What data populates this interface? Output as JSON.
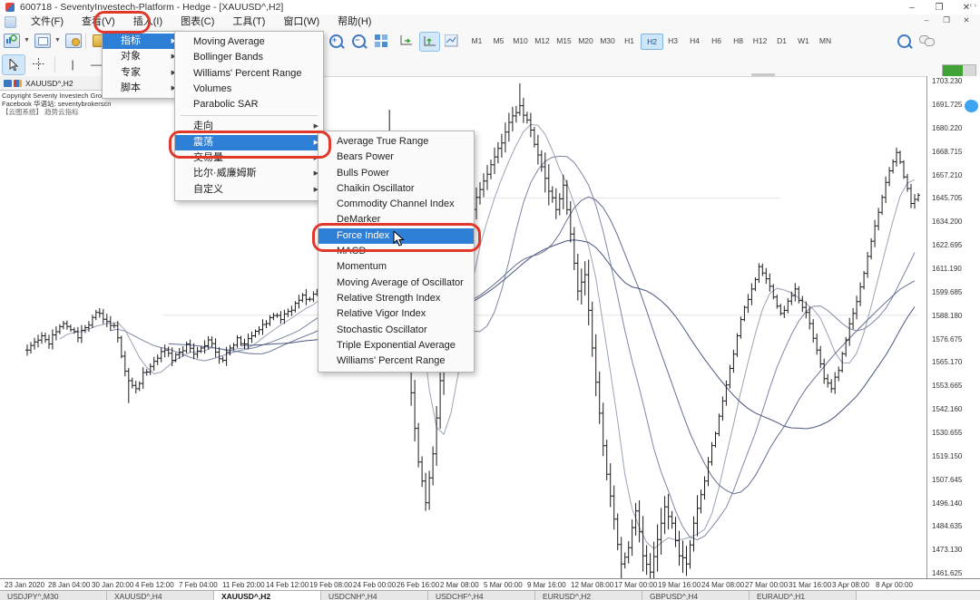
{
  "window": {
    "title": "600718 - SeventyInvestech-Platform - Hedge - [XAUUSD^,H2]",
    "controls": {
      "minimize": "–",
      "restore": "❐",
      "close": "✕"
    },
    "child_controls": {
      "minimize": "–",
      "restore": "❐",
      "close": "✕"
    }
  },
  "menu_bar": {
    "items": [
      {
        "label": "文件(F)"
      },
      {
        "label": "查看(V)"
      },
      {
        "label": "插入(I)",
        "annotated": true
      },
      {
        "label": "图表(C)"
      },
      {
        "label": "工具(T)"
      },
      {
        "label": "窗口(W)"
      },
      {
        "label": "帮助(H)"
      }
    ]
  },
  "toolbar": {
    "left_icons": [
      "new-chart",
      "profiles",
      "market-watch",
      "new-order"
    ],
    "right_icons": [
      "zoom-in",
      "zoom-out",
      "tile-windows",
      "auto-scroll",
      "chart-shift",
      "indicator-list"
    ],
    "active_right_icon": "chart-shift",
    "far_right_icons": [
      "search",
      "chat",
      "progress-bar"
    ],
    "timeframes": [
      "M1",
      "M5",
      "M10",
      "M12",
      "M15",
      "M20",
      "M30",
      "H1",
      "H2",
      "H3",
      "H4",
      "H6",
      "H8",
      "H12",
      "D1",
      "W1",
      "MN"
    ],
    "active_timeframe": "H2",
    "drawing_icons": [
      "cursor",
      "crosshair",
      "vertical-line",
      "horizontal-line"
    ],
    "active_drawing_icon": "cursor"
  },
  "insert_menu": {
    "items": [
      {
        "label": "指标",
        "has_submenu": true,
        "highlighted": true
      },
      {
        "label": "对象",
        "has_submenu": true
      },
      {
        "label": "专家",
        "has_submenu": true
      },
      {
        "label": "脚本",
        "has_submenu": true
      }
    ]
  },
  "indicators_submenu": {
    "items": [
      {
        "label": "Moving Average"
      },
      {
        "label": "Bollinger Bands"
      },
      {
        "label": "Williams' Percent Range"
      },
      {
        "label": "Volumes"
      },
      {
        "label": "Parabolic SAR"
      },
      {
        "separator": true
      },
      {
        "label": "走向",
        "has_submenu": true
      },
      {
        "label": "震荡",
        "has_submenu": true,
        "highlighted": true,
        "annotated": true
      },
      {
        "label": "交易量",
        "has_submenu": true
      },
      {
        "label": "比尔·威廉姆斯",
        "has_submenu": true
      },
      {
        "label": "自定义",
        "has_submenu": true
      }
    ]
  },
  "oscillators_submenu": {
    "highlighted": "Force Index",
    "items": [
      "Average True Range",
      "Bears Power",
      "Bulls Power",
      "Chaikin Oscillator",
      "Commodity Channel Index",
      "DeMarker",
      "Force Index",
      "MACD",
      "Momentum",
      "Moving Average of Oscillator",
      "Relative Strength Index",
      "Relative Vigor Index",
      "Stochastic Oscillator",
      "Triple Exponential Average",
      "Williams' Percent Range"
    ]
  },
  "chart": {
    "symbol_tab": "XAUUSD^,H2",
    "watermark_lines": [
      "Copyright Seventy Investech Gro",
      "Facebook 华语站: seventybrokerscn",
      "【云图系统】 趋势云指标"
    ],
    "price_axis_labels": [
      "1703.230",
      "1691.725",
      "1680.220",
      "1668.715",
      "1657.210",
      "1645.705",
      "1634.200",
      "1622.695",
      "1611.190",
      "1599.685",
      "1588.180",
      "1576.675",
      "1565.170",
      "1553.665",
      "1542.160",
      "1530.655",
      "1519.150",
      "1507.645",
      "1496.140",
      "1484.635",
      "1473.130",
      "1461.625"
    ],
    "time_axis_labels": [
      "23 Jan 2020",
      "28 Jan 04:00",
      "30 Jan 20:00",
      "4 Feb 12:00",
      "7 Feb 04:00",
      "11 Feb 20:00",
      "14 Feb 12:00",
      "19 Feb 08:00",
      "24 Feb 00:00",
      "26 Feb 16:00",
      "2 Mar 08:00",
      "5 Mar 00:00",
      "9 Mar 16:00",
      "12 Mar 08:00",
      "17 Mar 00:00",
      "19 Mar 16:00",
      "24 Mar 08:00",
      "27 Mar 00:00",
      "31 Mar 16:00",
      "3 Apr 08:00",
      "8 Apr 00:00"
    ]
  },
  "chart_data": {
    "type": "candlestick",
    "symbol": "XAUUSD^",
    "period": "H2",
    "ylim": [
      1455,
      1704
    ],
    "y_tick_step": 11.505,
    "closes": [
      1571,
      1575,
      1578,
      1574,
      1580,
      1584,
      1581,
      1577,
      1582,
      1587,
      1589,
      1585,
      1583,
      1568,
      1556,
      1552,
      1560,
      1563,
      1567,
      1571,
      1566,
      1570,
      1574,
      1569,
      1572,
      1576,
      1570,
      1566,
      1572,
      1577,
      1574,
      1578,
      1581,
      1584,
      1588,
      1586,
      1590,
      1594,
      1598,
      1596,
      1600,
      1603,
      1605,
      1602,
      1606,
      1609,
      1612,
      1620,
      1634,
      1650,
      1658,
      1630,
      1592,
      1550,
      1516,
      1496,
      1520,
      1556,
      1590,
      1605,
      1620,
      1634,
      1646,
      1654,
      1662,
      1670,
      1678,
      1686,
      1691,
      1684,
      1672,
      1661,
      1649,
      1640,
      1652,
      1628,
      1600,
      1608,
      1572,
      1540,
      1510,
      1488,
      1466,
      1474,
      1492,
      1470,
      1462,
      1478,
      1494,
      1486,
      1470,
      1466,
      1486,
      1500,
      1516,
      1530,
      1546,
      1562,
      1578,
      1592,
      1601,
      1612,
      1606,
      1597,
      1589,
      1595,
      1601,
      1592,
      1584,
      1571,
      1557,
      1552,
      1561,
      1576,
      1589,
      1602,
      1617,
      1632,
      1646,
      1659,
      1668,
      1656,
      1643,
      1647
    ],
    "spikes": {
      "14": {
        "low": 1545
      },
      "50": {
        "high": 1689
      },
      "68": {
        "high": 1702
      },
      "82": {
        "low": 1459
      },
      "86": {
        "low": 1460
      },
      "91": {
        "low": 1461
      }
    },
    "ma_periods": [
      10,
      24,
      40,
      60
    ],
    "support_lines": [
      1645.705,
      1588.18
    ],
    "grid": false,
    "bar_color": "#1c1c1c",
    "ma_colors": [
      "#9aa3b5",
      "#7d88a3",
      "#636f90",
      "#49567e"
    ]
  },
  "bottom_tabs": {
    "active_index": 2,
    "labels": [
      "USDJPY^,M30",
      "XAUUSD^,H4",
      "XAUUSD^,H2",
      "USDCNH^,H4",
      "USDCHF^,H4",
      "EURUSD^,H2",
      "GBPUSD^,H4",
      "EURAUD^,H1"
    ]
  },
  "colors": {
    "menu_highlight": "#2e7fd6",
    "annotation_red": "#e0392b",
    "timeframe_active_bg": "#cfe6f8",
    "progress_green": "#3fa335",
    "candle": "#1c1c1c"
  }
}
